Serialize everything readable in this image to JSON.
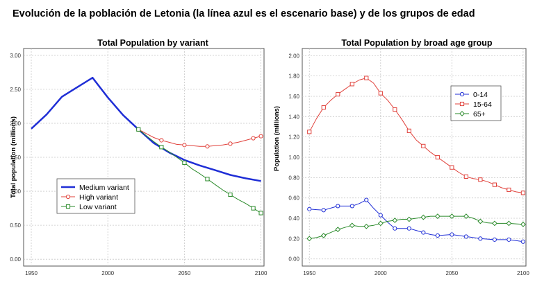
{
  "heading": "Evolución de la población de Letonia (la línea azul es el escenario base) y de los grupos de edad",
  "chart_data": [
    {
      "type": "line",
      "title": "Total Population by variant",
      "xlabel": "",
      "ylabel": "Total population (millions)",
      "xlim": [
        1945,
        2102
      ],
      "ylim": [
        -0.1,
        3.1
      ],
      "xticks": [
        "1950",
        "2000",
        "2050",
        "2100"
      ],
      "yticks": [
        "0.00",
        "0.50",
        "1.00",
        "1.50",
        "2.00",
        "2.50",
        "3.00"
      ],
      "grid": true,
      "legend_position": "bottom-left",
      "series": [
        {
          "name": "Medium variant",
          "color": "#1f2ed6",
          "marker": "none",
          "width": 2.5,
          "x": [
            1950,
            1960,
            1970,
            1980,
            1990,
            2000,
            2010,
            2020,
            2030,
            2040,
            2050,
            2060,
            2070,
            2080,
            2090,
            2100
          ],
          "y": [
            1.92,
            2.13,
            2.39,
            2.53,
            2.67,
            2.38,
            2.12,
            1.91,
            1.71,
            1.57,
            1.46,
            1.38,
            1.31,
            1.24,
            1.19,
            1.15
          ]
        },
        {
          "name": "High variant",
          "color": "#e0403a",
          "marker": "circle",
          "width": 1,
          "x": [
            2020,
            2025,
            2030,
            2035,
            2040,
            2045,
            2050,
            2055,
            2060,
            2065,
            2070,
            2075,
            2080,
            2085,
            2090,
            2095,
            2100
          ],
          "y": [
            1.91,
            1.85,
            1.79,
            1.75,
            1.72,
            1.69,
            1.68,
            1.67,
            1.66,
            1.66,
            1.67,
            1.68,
            1.7,
            1.72,
            1.75,
            1.78,
            1.81
          ]
        },
        {
          "name": "Low variant",
          "color": "#2a8a2a",
          "marker": "square",
          "width": 1,
          "x": [
            2020,
            2025,
            2030,
            2035,
            2040,
            2045,
            2050,
            2055,
            2060,
            2065,
            2070,
            2075,
            2080,
            2085,
            2090,
            2095,
            2100
          ],
          "y": [
            1.91,
            1.82,
            1.73,
            1.65,
            1.58,
            1.5,
            1.42,
            1.33,
            1.26,
            1.18,
            1.1,
            1.02,
            0.95,
            0.88,
            0.82,
            0.75,
            0.68
          ]
        }
      ]
    },
    {
      "type": "line",
      "title": "Total Population by broad age group",
      "xlabel": "",
      "ylabel": "Population (millions)",
      "xlim": [
        1945,
        2102
      ],
      "ylim": [
        -0.07,
        2.07
      ],
      "xticks": [
        "1950",
        "2000",
        "2050",
        "2100"
      ],
      "yticks": [
        "0.00",
        "0.20",
        "0.40",
        "0.60",
        "0.80",
        "1.00",
        "1.20",
        "1.40",
        "1.60",
        "1.80",
        "2.00"
      ],
      "grid": true,
      "legend_position": "top-right",
      "series": [
        {
          "name": "0-14",
          "color": "#1f2ed6",
          "marker": "circle",
          "width": 1,
          "x": [
            1950,
            1955,
            1960,
            1965,
            1970,
            1975,
            1980,
            1985,
            1990,
            1995,
            2000,
            2005,
            2010,
            2015,
            2020,
            2025,
            2030,
            2035,
            2040,
            2045,
            2050,
            2055,
            2060,
            2065,
            2070,
            2075,
            2080,
            2085,
            2090,
            2095,
            2100
          ],
          "y": [
            0.49,
            0.485,
            0.48,
            0.5,
            0.52,
            0.52,
            0.52,
            0.545,
            0.58,
            0.5,
            0.43,
            0.36,
            0.3,
            0.3,
            0.3,
            0.28,
            0.26,
            0.24,
            0.23,
            0.235,
            0.24,
            0.23,
            0.22,
            0.21,
            0.2,
            0.195,
            0.19,
            0.19,
            0.19,
            0.18,
            0.17
          ]
        },
        {
          "name": "15-64",
          "color": "#e0403a",
          "marker": "square",
          "width": 1,
          "x": [
            1950,
            1955,
            1960,
            1965,
            1970,
            1975,
            1980,
            1985,
            1990,
            1995,
            2000,
            2005,
            2010,
            2015,
            2020,
            2025,
            2030,
            2035,
            2040,
            2045,
            2050,
            2055,
            2060,
            2065,
            2070,
            2075,
            2080,
            2085,
            2090,
            2095,
            2100
          ],
          "y": [
            1.25,
            1.38,
            1.49,
            1.56,
            1.62,
            1.67,
            1.72,
            1.76,
            1.78,
            1.73,
            1.63,
            1.56,
            1.47,
            1.37,
            1.26,
            1.17,
            1.11,
            1.05,
            1.0,
            0.95,
            0.9,
            0.85,
            0.81,
            0.79,
            0.78,
            0.76,
            0.73,
            0.7,
            0.68,
            0.66,
            0.65
          ]
        },
        {
          "name": "65+",
          "color": "#2a8a2a",
          "marker": "diamond",
          "width": 1,
          "x": [
            1950,
            1955,
            1960,
            1965,
            1970,
            1975,
            1980,
            1985,
            1990,
            1995,
            2000,
            2005,
            2010,
            2015,
            2020,
            2025,
            2030,
            2035,
            2040,
            2045,
            2050,
            2055,
            2060,
            2065,
            2070,
            2075,
            2080,
            2085,
            2090,
            2095,
            2100
          ],
          "y": [
            0.2,
            0.21,
            0.23,
            0.26,
            0.29,
            0.31,
            0.33,
            0.32,
            0.32,
            0.33,
            0.35,
            0.37,
            0.38,
            0.39,
            0.39,
            0.4,
            0.41,
            0.42,
            0.42,
            0.42,
            0.42,
            0.42,
            0.42,
            0.4,
            0.37,
            0.355,
            0.35,
            0.35,
            0.35,
            0.345,
            0.34
          ]
        }
      ]
    }
  ]
}
